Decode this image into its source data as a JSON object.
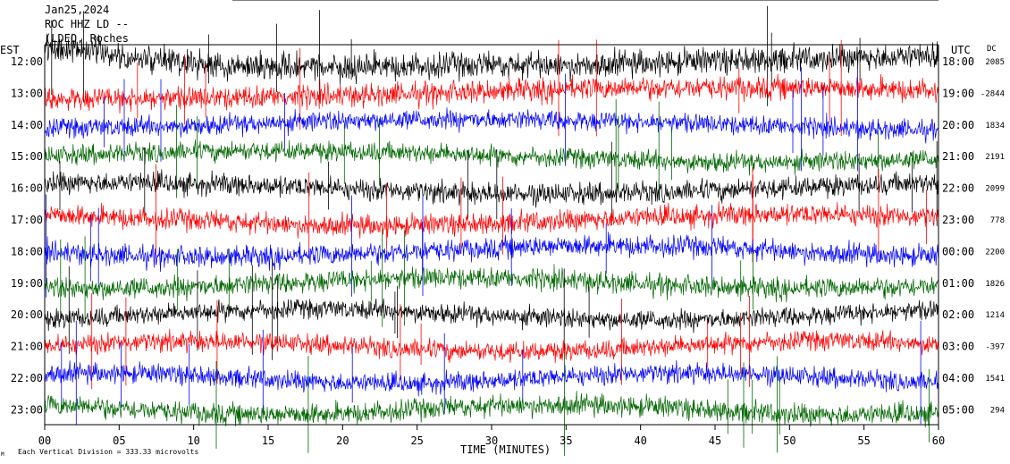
{
  "header": {
    "date": "Jan25,2024",
    "station_line": "ROC HHZ LD --",
    "location_line": "(LDEO, Roches",
    "left_tz": "EST",
    "right_tz": "UTC",
    "dc_label": "DC"
  },
  "footer": {
    "vertical_division": "Each Vertical Division =  333.33 microvolts",
    "corner_mark": "M"
  },
  "colors": {
    "trace_cycle": [
      "#000000",
      "#ff0000",
      "#0000ff",
      "#006600"
    ],
    "axis": "#000000",
    "background": "#ffffff"
  },
  "chart_data": {
    "type": "line",
    "title": "ROC HHZ LD --",
    "xlabel": "TIME (MINUTES)",
    "ylabel": "",
    "xlim": [
      0,
      60
    ],
    "x_ticks": [
      "00",
      "05",
      "10",
      "15",
      "20",
      "25",
      "30",
      "35",
      "40",
      "45",
      "50",
      "55",
      "60"
    ],
    "rows": [
      {
        "est": "12:00",
        "utc": "18:00",
        "dc": "2085",
        "color": "#000000"
      },
      {
        "est": "13:00",
        "utc": "19:00",
        "dc": "-2844",
        "color": "#ff0000"
      },
      {
        "est": "14:00",
        "utc": "20:00",
        "dc": "1834",
        "color": "#0000ff"
      },
      {
        "est": "15:00",
        "utc": "21:00",
        "dc": "2191",
        "color": "#006600"
      },
      {
        "est": "16:00",
        "utc": "22:00",
        "dc": "2099",
        "color": "#000000"
      },
      {
        "est": "17:00",
        "utc": "23:00",
        "dc": "778",
        "color": "#ff0000"
      },
      {
        "est": "18:00",
        "utc": "00:00",
        "dc": "2200",
        "color": "#0000ff"
      },
      {
        "est": "19:00",
        "utc": "01:00",
        "dc": "1826",
        "color": "#006600"
      },
      {
        "est": "20:00",
        "utc": "02:00",
        "dc": "1214",
        "color": "#000000"
      },
      {
        "est": "21:00",
        "utc": "03:00",
        "dc": "-397",
        "color": "#ff0000"
      },
      {
        "est": "22:00",
        "utc": "04:00",
        "dc": "1541",
        "color": "#0000ff"
      },
      {
        "est": "23:00",
        "utc": "05:00",
        "dc": "294",
        "color": "#006600"
      }
    ],
    "grid": false,
    "legend": "none"
  }
}
